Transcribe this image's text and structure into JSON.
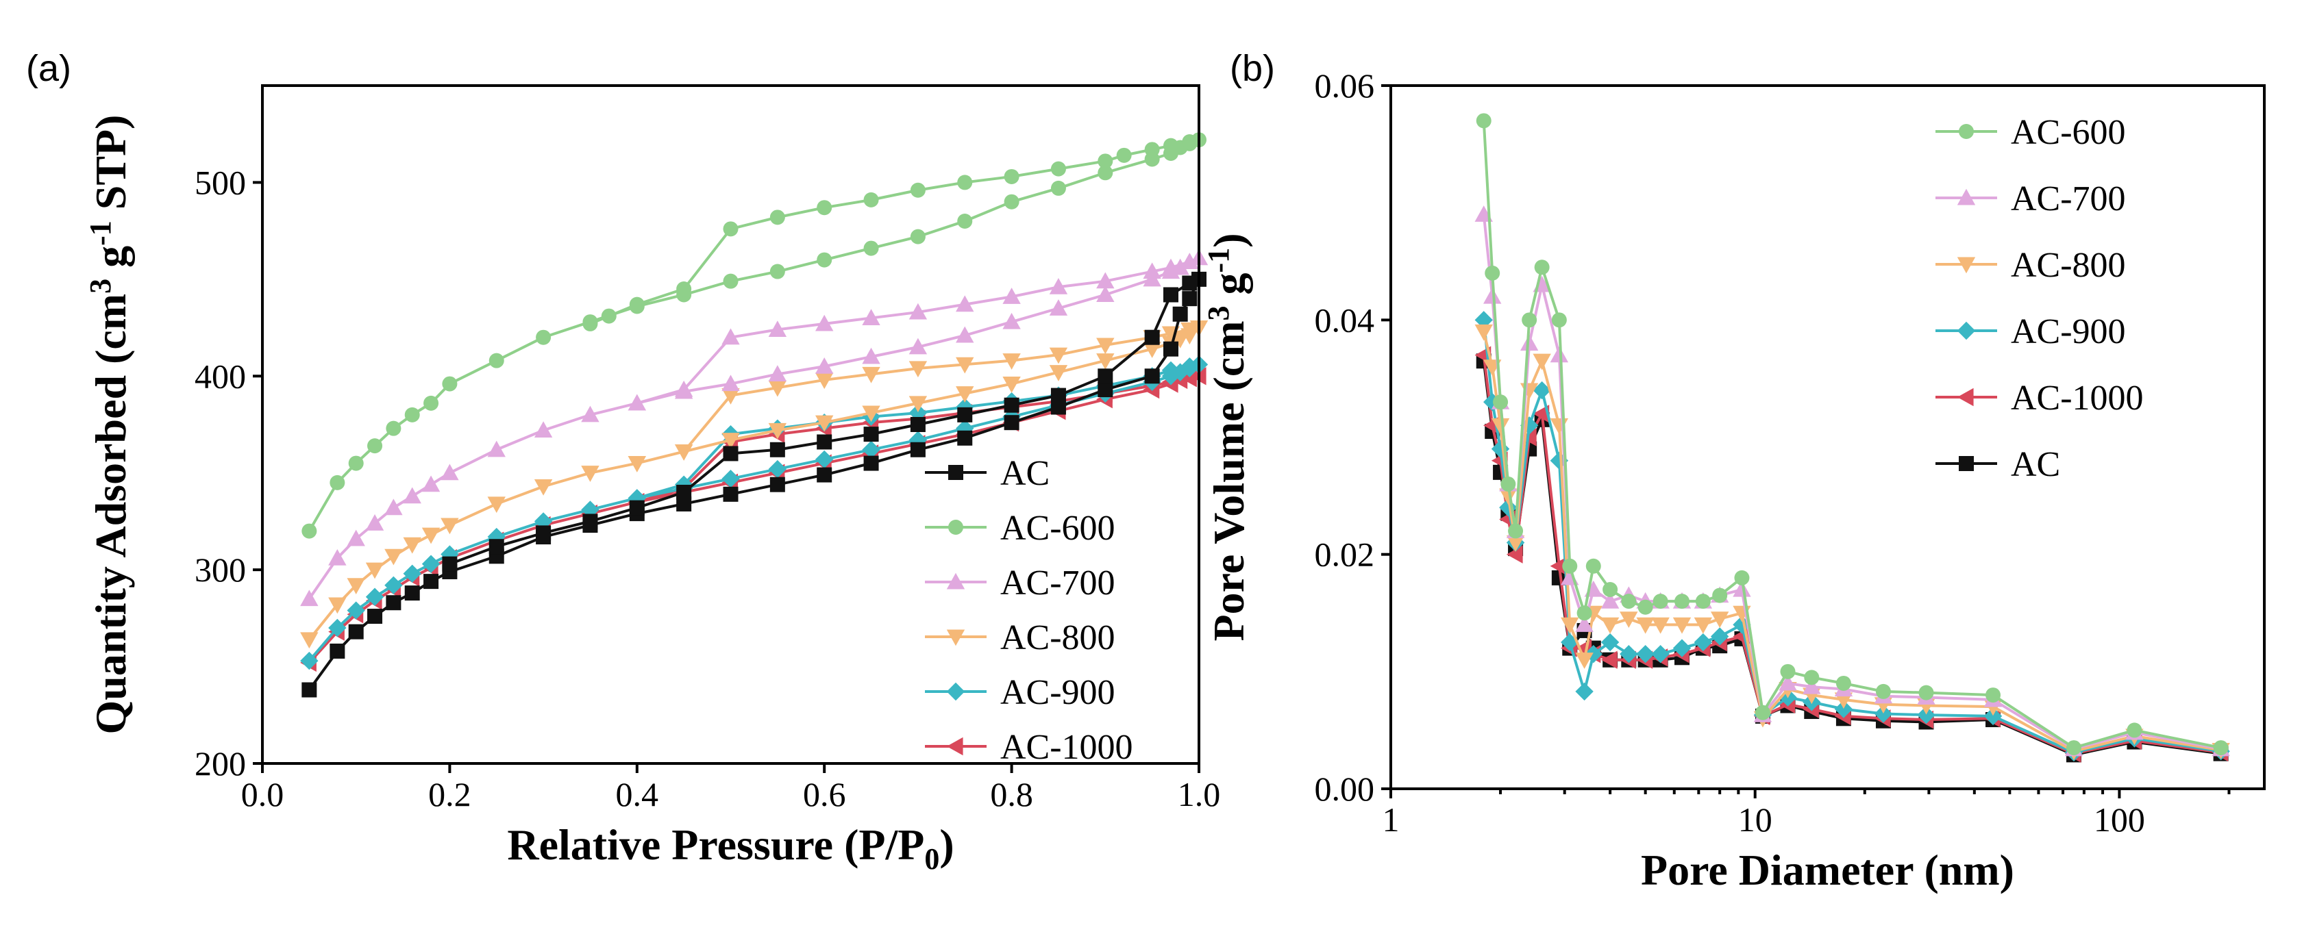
{
  "colors": {
    "AC": "#111111",
    "AC-600": "#8fd08a",
    "AC-700": "#e0a8de",
    "AC-800": "#f5b877",
    "AC-900": "#3ab7c4",
    "AC-1000": "#d9485a"
  },
  "chart_data": [
    {
      "type": "line",
      "panel_label": "(a)",
      "xlabel": "Relative Pressure (P/P",
      "xlabel_sub": "0",
      "xlabel_end": ")",
      "ylabel": "Quantity Adsorbed (cm",
      "ylabel_sup1": "3",
      "ylabel_mid": " g",
      "ylabel_sup2": "-1",
      "ylabel_end": " STP)",
      "xlim": [
        0.0,
        1.0
      ],
      "ylim": [
        200,
        550
      ],
      "xticks": [
        "0.0",
        "0.2",
        "0.4",
        "0.6",
        "0.8",
        "1.0"
      ],
      "xtick_values": [
        0.0,
        0.2,
        0.4,
        0.6,
        0.8,
        1.0
      ],
      "yticks": [
        "200",
        "300",
        "400",
        "500"
      ],
      "ytick_values": [
        200,
        300,
        400,
        500
      ],
      "legend_position": "bottom-right",
      "legend_order": [
        "AC",
        "AC-600",
        "AC-700",
        "AC-800",
        "AC-900",
        "AC-1000"
      ],
      "series": [
        {
          "name": "AC",
          "marker": "square",
          "x": [
            0.05,
            0.08,
            0.1,
            0.12,
            0.14,
            0.16,
            0.18,
            0.2,
            0.25,
            0.3,
            0.35,
            0.4,
            0.45,
            0.5,
            0.55,
            0.6,
            0.65,
            0.7,
            0.75,
            0.8,
            0.85,
            0.9,
            0.95,
            0.97,
            0.98,
            0.99,
            1.0,
            0.99,
            0.97,
            0.95,
            0.9,
            0.85,
            0.8,
            0.75,
            0.7,
            0.65,
            0.6,
            0.55,
            0.5,
            0.45,
            0.4,
            0.35,
            0.3,
            0.25,
            0.2
          ],
          "y": [
            238,
            258,
            268,
            276,
            283,
            288,
            294,
            299,
            307,
            317,
            323,
            329,
            334,
            339,
            344,
            349,
            355,
            362,
            368,
            376,
            384,
            393,
            400,
            414,
            432,
            440,
            450,
            448,
            442,
            420,
            400,
            390,
            385,
            380,
            375,
            370,
            366,
            362,
            360,
            340,
            332,
            325,
            319,
            312,
            303
          ]
        },
        {
          "name": "AC-600",
          "marker": "circle",
          "x": [
            0.05,
            0.08,
            0.1,
            0.12,
            0.14,
            0.16,
            0.18,
            0.2,
            0.25,
            0.3,
            0.35,
            0.4,
            0.45,
            0.5,
            0.55,
            0.6,
            0.65,
            0.7,
            0.75,
            0.8,
            0.85,
            0.9,
            0.95,
            0.97,
            0.98,
            0.99,
            1.0,
            0.99,
            0.97,
            0.95,
            0.92,
            0.9,
            0.85,
            0.8,
            0.75,
            0.7,
            0.65,
            0.6,
            0.55,
            0.5,
            0.45,
            0.4,
            0.37,
            0.35
          ],
          "y": [
            320,
            345,
            355,
            364,
            373,
            380,
            386,
            396,
            408,
            420,
            428,
            436,
            442,
            449,
            454,
            460,
            466,
            472,
            480,
            490,
            497,
            505,
            512,
            515,
            518,
            520,
            522,
            521,
            519,
            517,
            514,
            511,
            507,
            503,
            500,
            496,
            491,
            487,
            482,
            476,
            445,
            437,
            431,
            427
          ]
        },
        {
          "name": "AC-700",
          "marker": "triangle-up",
          "x": [
            0.05,
            0.08,
            0.1,
            0.12,
            0.14,
            0.16,
            0.18,
            0.2,
            0.25,
            0.3,
            0.35,
            0.4,
            0.45,
            0.5,
            0.55,
            0.6,
            0.65,
            0.7,
            0.75,
            0.8,
            0.85,
            0.9,
            0.95,
            0.97,
            0.98,
            0.99,
            1.0,
            0.99,
            0.97,
            0.95,
            0.9,
            0.85,
            0.8,
            0.75,
            0.7,
            0.65,
            0.6,
            0.55,
            0.5,
            0.45,
            0.4
          ],
          "y": [
            285,
            306,
            316,
            324,
            332,
            338,
            344,
            350,
            362,
            372,
            380,
            386,
            392,
            396,
            401,
            405,
            410,
            415,
            421,
            428,
            435,
            442,
            450,
            454,
            456,
            459,
            461,
            459,
            456,
            454,
            449,
            446,
            441,
            437,
            433,
            430,
            427,
            424,
            420,
            393,
            386
          ]
        },
        {
          "name": "AC-800",
          "marker": "triangle-down",
          "x": [
            0.05,
            0.08,
            0.1,
            0.12,
            0.14,
            0.16,
            0.18,
            0.2,
            0.25,
            0.3,
            0.35,
            0.4,
            0.45,
            0.5,
            0.55,
            0.6,
            0.65,
            0.7,
            0.75,
            0.8,
            0.85,
            0.9,
            0.95,
            0.97,
            0.98,
            0.99,
            1.0,
            0.99,
            0.97,
            0.95,
            0.9,
            0.85,
            0.8,
            0.75,
            0.7,
            0.65,
            0.6,
            0.55,
            0.5,
            0.45,
            0.4
          ],
          "y": [
            264,
            282,
            292,
            300,
            307,
            313,
            318,
            323,
            334,
            343,
            350,
            355,
            361,
            367,
            372,
            376,
            381,
            386,
            391,
            396,
            402,
            408,
            414,
            417,
            419,
            421,
            425,
            424,
            422,
            420,
            416,
            411,
            408,
            406,
            404,
            401,
            398,
            394,
            390,
            361,
            355
          ]
        },
        {
          "name": "AC-900",
          "marker": "diamond",
          "x": [
            0.05,
            0.08,
            0.1,
            0.12,
            0.14,
            0.16,
            0.18,
            0.2,
            0.25,
            0.3,
            0.35,
            0.4,
            0.45,
            0.5,
            0.55,
            0.6,
            0.65,
            0.7,
            0.75,
            0.8,
            0.85,
            0.9,
            0.95,
            0.97,
            0.98,
            0.99,
            1.0,
            0.99,
            0.97,
            0.95,
            0.9,
            0.85,
            0.8,
            0.75,
            0.7,
            0.65,
            0.6,
            0.55,
            0.5,
            0.45,
            0.4
          ],
          "y": [
            253,
            270,
            279,
            286,
            292,
            298,
            303,
            308,
            317,
            325,
            331,
            337,
            342,
            347,
            352,
            357,
            362,
            367,
            373,
            379,
            385,
            391,
            397,
            400,
            402,
            404,
            406,
            405,
            403,
            400,
            395,
            390,
            387,
            384,
            381,
            379,
            376,
            373,
            370,
            344,
            337
          ]
        },
        {
          "name": "AC-1000",
          "marker": "triangle-left",
          "x": [
            0.05,
            0.08,
            0.1,
            0.12,
            0.14,
            0.16,
            0.18,
            0.2,
            0.25,
            0.3,
            0.35,
            0.4,
            0.45,
            0.5,
            0.55,
            0.6,
            0.65,
            0.7,
            0.75,
            0.8,
            0.85,
            0.9,
            0.95,
            0.97,
            0.98,
            0.99,
            1.0,
            0.99,
            0.97,
            0.95,
            0.9,
            0.85,
            0.8,
            0.75,
            0.7,
            0.65,
            0.6,
            0.55,
            0.5,
            0.45,
            0.4
          ],
          "y": [
            252,
            268,
            277,
            284,
            290,
            296,
            301,
            306,
            315,
            323,
            329,
            335,
            340,
            345,
            350,
            355,
            360,
            365,
            370,
            376,
            382,
            388,
            393,
            396,
            398,
            399,
            400,
            399,
            397,
            395,
            391,
            387,
            384,
            381,
            378,
            376,
            373,
            370,
            366,
            342,
            335
          ]
        }
      ]
    },
    {
      "type": "line",
      "panel_label": "(b)",
      "xlabel": "Pore Diameter (nm)",
      "ylabel": "Pore Volume (cm",
      "ylabel_sup1": "3",
      "ylabel_mid": " g",
      "ylabel_sup2": "-1",
      "ylabel_end": ")",
      "xscale": "log",
      "xlim": [
        1,
        250
      ],
      "ylim": [
        0.0,
        0.06
      ],
      "xticks": [
        "1",
        "10",
        "100"
      ],
      "xtick_values": [
        1,
        10,
        100
      ],
      "yticks": [
        "0.00",
        "0.02",
        "0.04",
        "0.06"
      ],
      "ytick_values": [
        0.0,
        0.02,
        0.04,
        0.06
      ],
      "legend_position": "top-right",
      "legend_order": [
        "AC-600",
        "AC-700",
        "AC-800",
        "AC-900",
        "AC-1000",
        "AC"
      ],
      "series": [
        {
          "name": "AC-600",
          "marker": "circle",
          "x": [
            1.8,
            1.9,
            2.0,
            2.1,
            2.2,
            2.4,
            2.6,
            2.9,
            3.1,
            3.4,
            3.6,
            4.0,
            4.5,
            5.0,
            5.5,
            6.3,
            7.2,
            8.0,
            9.2,
            10.5,
            12.3,
            14.3,
            17.5,
            22.5,
            29.5,
            45,
            75,
            110,
            190
          ],
          "y": [
            0.057,
            0.044,
            0.033,
            0.026,
            0.022,
            0.04,
            0.0445,
            0.04,
            0.019,
            0.015,
            0.019,
            0.017,
            0.016,
            0.0155,
            0.016,
            0.016,
            0.016,
            0.0165,
            0.018,
            0.0065,
            0.01,
            0.0095,
            0.009,
            0.0083,
            0.0082,
            0.008,
            0.0035,
            0.005,
            0.0035
          ]
        },
        {
          "name": "AC-700",
          "marker": "triangle-up",
          "x": [
            1.8,
            1.9,
            2.0,
            2.1,
            2.2,
            2.4,
            2.6,
            2.9,
            3.1,
            3.4,
            3.6,
            4.0,
            4.5,
            5.0,
            5.5,
            6.3,
            7.2,
            8.0,
            9.2,
            10.5,
            12.3,
            14.3,
            17.5,
            22.5,
            29.5,
            45,
            75,
            110,
            190
          ],
          "y": [
            0.049,
            0.042,
            0.033,
            0.026,
            0.022,
            0.038,
            0.043,
            0.037,
            0.018,
            0.014,
            0.017,
            0.016,
            0.0165,
            0.016,
            0.016,
            0.016,
            0.016,
            0.0165,
            0.017,
            0.0063,
            0.009,
            0.0087,
            0.0085,
            0.0079,
            0.0078,
            0.0076,
            0.0034,
            0.0048,
            0.0034
          ]
        },
        {
          "name": "AC-800",
          "marker": "triangle-down",
          "x": [
            1.8,
            1.9,
            2.0,
            2.1,
            2.2,
            2.4,
            2.6,
            2.9,
            3.1,
            3.4,
            3.6,
            4.0,
            4.5,
            5.0,
            5.5,
            6.3,
            7.2,
            8.0,
            9.2,
            10.5,
            12.3,
            14.3,
            17.5,
            22.5,
            29.5,
            45,
            75,
            110,
            190
          ],
          "y": [
            0.039,
            0.036,
            0.031,
            0.025,
            0.021,
            0.034,
            0.0365,
            0.031,
            0.014,
            0.011,
            0.015,
            0.014,
            0.0145,
            0.014,
            0.014,
            0.014,
            0.014,
            0.0145,
            0.015,
            0.006,
            0.0085,
            0.008,
            0.0076,
            0.0072,
            0.0071,
            0.007,
            0.0032,
            0.0045,
            0.0033
          ]
        },
        {
          "name": "AC-900",
          "marker": "diamond",
          "x": [
            1.8,
            1.9,
            2.0,
            2.1,
            2.2,
            2.4,
            2.6,
            2.9,
            3.1,
            3.4,
            3.6,
            4.0,
            4.5,
            5.0,
            5.5,
            6.3,
            7.2,
            8.0,
            9.2,
            10.5,
            12.3,
            14.3,
            17.5,
            22.5,
            29.5,
            45,
            75,
            110,
            190
          ],
          "y": [
            0.04,
            0.033,
            0.029,
            0.024,
            0.021,
            0.031,
            0.034,
            0.028,
            0.0125,
            0.0083,
            0.0115,
            0.0125,
            0.0115,
            0.0115,
            0.0115,
            0.012,
            0.0125,
            0.013,
            0.014,
            0.0063,
            0.0078,
            0.0074,
            0.0068,
            0.0064,
            0.0063,
            0.0062,
            0.0031,
            0.0043,
            0.0032
          ]
        },
        {
          "name": "AC-1000",
          "marker": "triangle-left",
          "x": [
            1.8,
            1.9,
            2.0,
            2.1,
            2.2,
            2.4,
            2.6,
            2.9,
            3.1,
            3.4,
            3.6,
            4.0,
            4.5,
            5.0,
            5.5,
            6.3,
            7.2,
            8.0,
            9.2,
            10.5,
            12.3,
            14.3,
            17.5,
            22.5,
            29.5,
            45,
            75,
            110,
            190
          ],
          "y": [
            0.037,
            0.031,
            0.028,
            0.023,
            0.02,
            0.03,
            0.032,
            0.019,
            0.012,
            0.012,
            0.0115,
            0.011,
            0.011,
            0.011,
            0.0112,
            0.0115,
            0.012,
            0.0125,
            0.013,
            0.0062,
            0.0072,
            0.0068,
            0.0062,
            0.006,
            0.0059,
            0.006,
            0.003,
            0.0041,
            0.0031
          ]
        },
        {
          "name": "AC",
          "marker": "square",
          "x": [
            1.8,
            1.9,
            2.0,
            2.1,
            2.2,
            2.4,
            2.6,
            2.9,
            3.1,
            3.4,
            3.6,
            4.0,
            4.5,
            5.0,
            5.5,
            6.3,
            7.2,
            8.0,
            9.2,
            10.5,
            12.3,
            14.3,
            17.5,
            22.5,
            29.5,
            45,
            75,
            110,
            190
          ],
          "y": [
            0.0365,
            0.0305,
            0.027,
            0.0235,
            0.0205,
            0.029,
            0.0315,
            0.018,
            0.012,
            0.0135,
            0.012,
            0.011,
            0.011,
            0.011,
            0.011,
            0.0112,
            0.012,
            0.0122,
            0.0128,
            0.0062,
            0.0071,
            0.0066,
            0.006,
            0.0058,
            0.0057,
            0.0059,
            0.0029,
            0.004,
            0.003
          ]
        }
      ]
    }
  ]
}
